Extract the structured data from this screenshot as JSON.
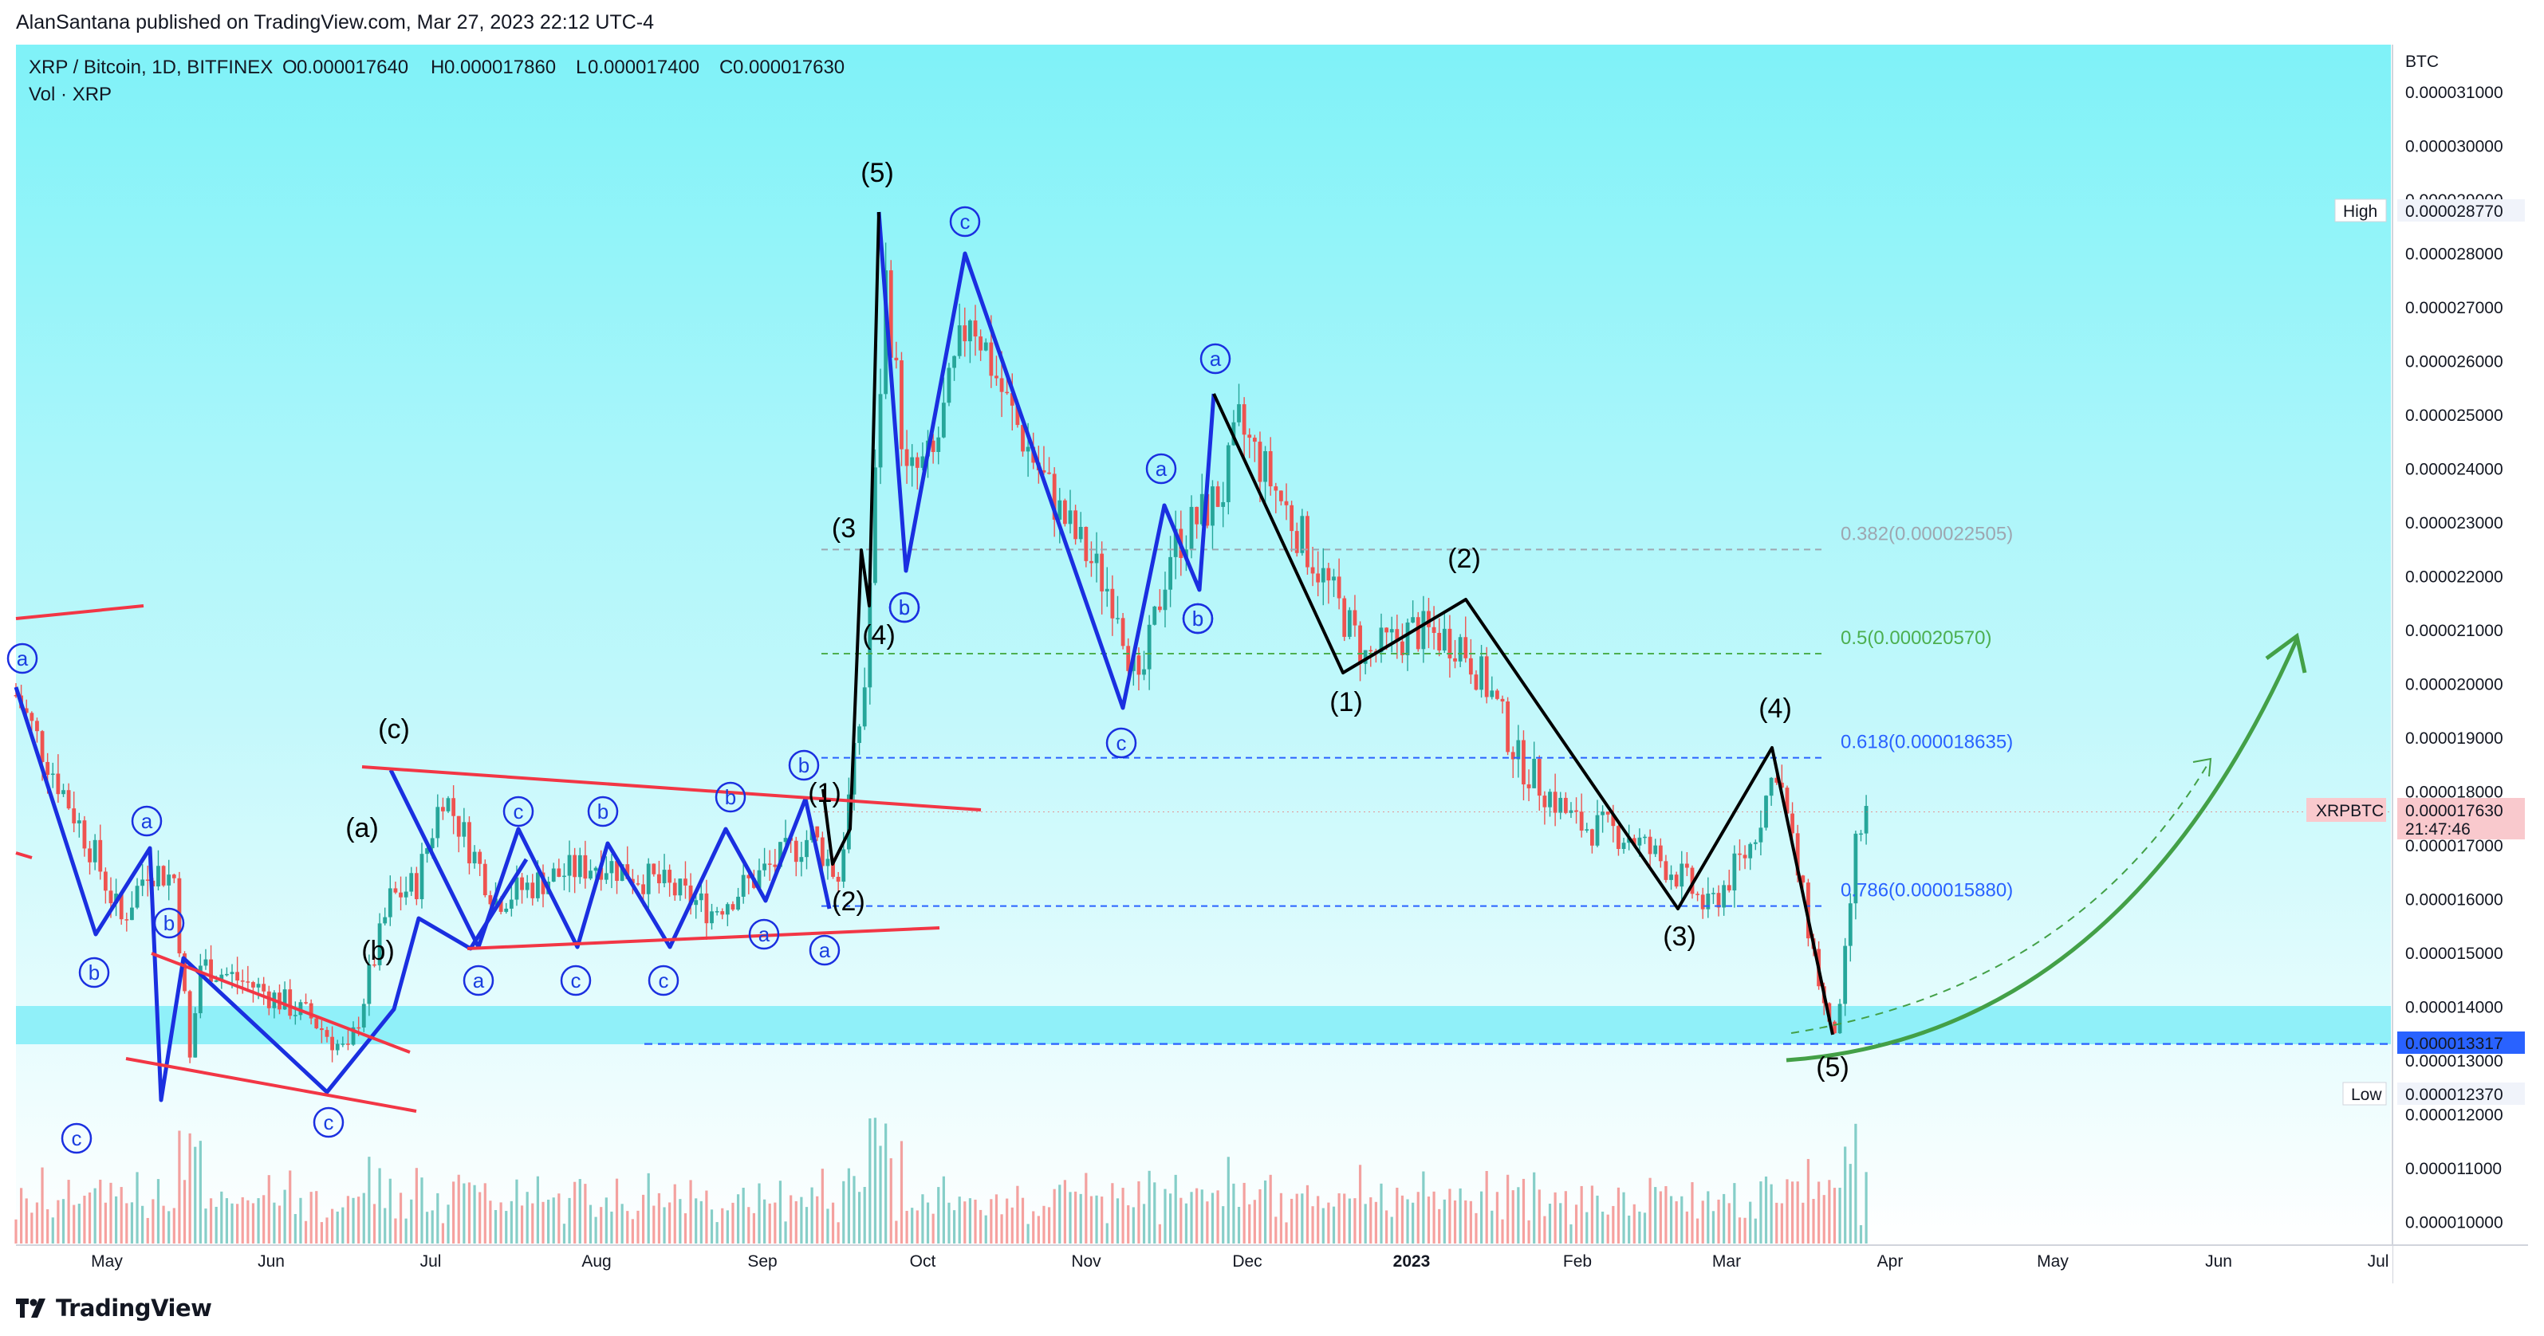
{
  "publisher_line": "AlanSantana published on TradingView.com, Mar 27, 2023 22:12 UTC-4",
  "footer": {
    "brand": "TradingView",
    "logo_icon": "tradingview-logo-icon"
  },
  "legend": {
    "symbol": "XRP / Bitcoin, 1D, BITFINEX",
    "o_label": "O",
    "o_value": "0.000017640",
    "h_label": "H",
    "h_value": "0.000017860",
    "l_label": "L",
    "l_value": "0.000017400",
    "c_label": "C",
    "c_value": "0.000017630",
    "vol": "Vol · XRP"
  },
  "price_axis": {
    "unit": "BTC",
    "ticks": [
      "0.000031000",
      "0.000030000",
      "0.000029000",
      "0.000028000",
      "0.000027000",
      "0.000026000",
      "0.000025000",
      "0.000024000",
      "0.000023000",
      "0.000022000",
      "0.000021000",
      "0.000020000",
      "0.000019000",
      "0.000018000",
      "0.000017000",
      "0.000016000",
      "0.000015000",
      "0.000014000",
      "0.000013000",
      "0.000012000",
      "0.000011000",
      "0.000010000"
    ],
    "high_label": "High",
    "high_value": "0.000028770",
    "symbol_tag": "XRPBTC",
    "last_value": "0.000017630",
    "countdown": "21:47:46",
    "line_value": "0.000013317",
    "low_label": "Low",
    "low_value": "0.000012370"
  },
  "time_axis": {
    "ticks": [
      "May",
      "Jun",
      "Jul",
      "Aug",
      "Sep",
      "Oct",
      "Nov",
      "Dec",
      "2023",
      "Feb",
      "Mar",
      "Apr",
      "May",
      "Jun",
      "Jul"
    ]
  },
  "fib_levels": [
    {
      "text": "0.382(0.000022505)",
      "value": 2.2505e-05,
      "color": "#9ea6b0"
    },
    {
      "text": "0.5(0.000020570)",
      "value": 2.057e-05,
      "color": "#4caf50"
    },
    {
      "text": "0.618(0.000018635)",
      "value": 1.8635e-05,
      "color": "#2962ff"
    },
    {
      "text": "0.786(0.000015880)",
      "value": 1.588e-05,
      "color": "#2962ff"
    }
  ],
  "wave_labels": [
    "(c)",
    "(a)",
    "(b)",
    "(5)",
    "(3",
    "(4)",
    "(1)",
    "(2)",
    "(1)",
    "(2)",
    "(3)",
    "(4)",
    "(5)"
  ],
  "circle_labels": [
    "a",
    "c",
    "b",
    "b",
    "a",
    "c",
    "c",
    "b",
    "a",
    "c",
    "b",
    "a",
    "b",
    "a",
    "c",
    "c",
    "a",
    "b",
    "c",
    "b",
    "a",
    "c",
    "b"
  ],
  "colors": {
    "up": "#26a69a",
    "down": "#ef5350",
    "blue_wave": "#1a2fe0",
    "black_wave": "#000000",
    "trend_red": "#f23645",
    "forecast_green": "#43a047",
    "bg_cyan": "#7ff2f8",
    "zone_cyan": "#86eef8"
  },
  "chart_data": {
    "type": "candlestick",
    "title": "XRP / Bitcoin, 1D, BITFINEX",
    "ylabel": "BTC",
    "ylim": [
      9.6e-06,
      3.2e-05
    ],
    "x_range": [
      "2022-04-10",
      "2023-07-22"
    ],
    "ohlc_last": {
      "date": "2023-03-27",
      "open": 1.764e-05,
      "high": 1.786e-05,
      "low": 1.74e-05,
      "close": 1.763e-05
    },
    "period_high": 2.877e-05,
    "period_low": 1.237e-05,
    "closes_approx": [
      [
        "2022-04-10",
        1.98e-05
      ],
      [
        "2022-04-25",
        1.68e-05
      ],
      [
        "2022-04-30",
        1.56e-05
      ],
      [
        "2022-05-05",
        1.66e-05
      ],
      [
        "2022-05-10",
        1.64e-05
      ],
      [
        "2022-05-13",
        1.3e-05
      ],
      [
        "2022-05-15",
        1.48e-05
      ],
      [
        "2022-05-25",
        1.44e-05
      ],
      [
        "2022-06-05",
        1.38e-05
      ],
      [
        "2022-06-12",
        1.31e-05
      ],
      [
        "2022-06-20",
        1.6e-05
      ],
      [
        "2022-06-25",
        1.63e-05
      ],
      [
        "2022-06-30",
        1.8e-05
      ],
      [
        "2022-07-10",
        1.6e-05
      ],
      [
        "2022-07-20",
        1.64e-05
      ],
      [
        "2022-07-30",
        1.67e-05
      ],
      [
        "2022-08-10",
        1.63e-05
      ],
      [
        "2022-08-20",
        1.58e-05
      ],
      [
        "2022-08-31",
        1.66e-05
      ],
      [
        "2022-09-08",
        1.72e-05
      ],
      [
        "2022-09-13",
        1.64e-05
      ],
      [
        "2022-09-18",
        2e-05
      ],
      [
        "2022-09-22",
        2.75e-05
      ],
      [
        "2022-09-26",
        2.38e-05
      ],
      [
        "2022-10-01",
        2.42e-05
      ],
      [
        "2022-10-08",
        2.7e-05
      ],
      [
        "2022-10-15",
        2.52e-05
      ],
      [
        "2022-10-25",
        2.32e-05
      ],
      [
        "2022-11-05",
        2.15e-05
      ],
      [
        "2022-11-09",
        1.98e-05
      ],
      [
        "2022-11-15",
        2.25e-05
      ],
      [
        "2022-11-25",
        2.36e-05
      ],
      [
        "2022-11-28",
        2.48e-05
      ],
      [
        "2022-12-05",
        2.36e-05
      ],
      [
        "2022-12-15",
        2.18e-05
      ],
      [
        "2022-12-22",
        2.05e-05
      ],
      [
        "2022-12-31",
        2.1e-05
      ],
      [
        "2023-01-09",
        2.08e-05
      ],
      [
        "2023-01-15",
        1.98e-05
      ],
      [
        "2023-01-20",
        1.86e-05
      ],
      [
        "2023-01-31",
        1.74e-05
      ],
      [
        "2023-02-10",
        1.72e-05
      ],
      [
        "2023-02-20",
        1.64e-05
      ],
      [
        "2023-02-25",
        1.58e-05
      ],
      [
        "2023-03-05",
        1.7e-05
      ],
      [
        "2023-03-10",
        1.85e-05
      ],
      [
        "2023-03-15",
        1.6e-05
      ],
      [
        "2023-03-20",
        1.35e-05
      ],
      [
        "2023-03-22",
        1.38e-05
      ],
      [
        "2023-03-25",
        1.7e-05
      ],
      [
        "2023-03-27",
        1.76e-05
      ]
    ],
    "volume": {
      "label": "Vol · XRP"
    }
  }
}
